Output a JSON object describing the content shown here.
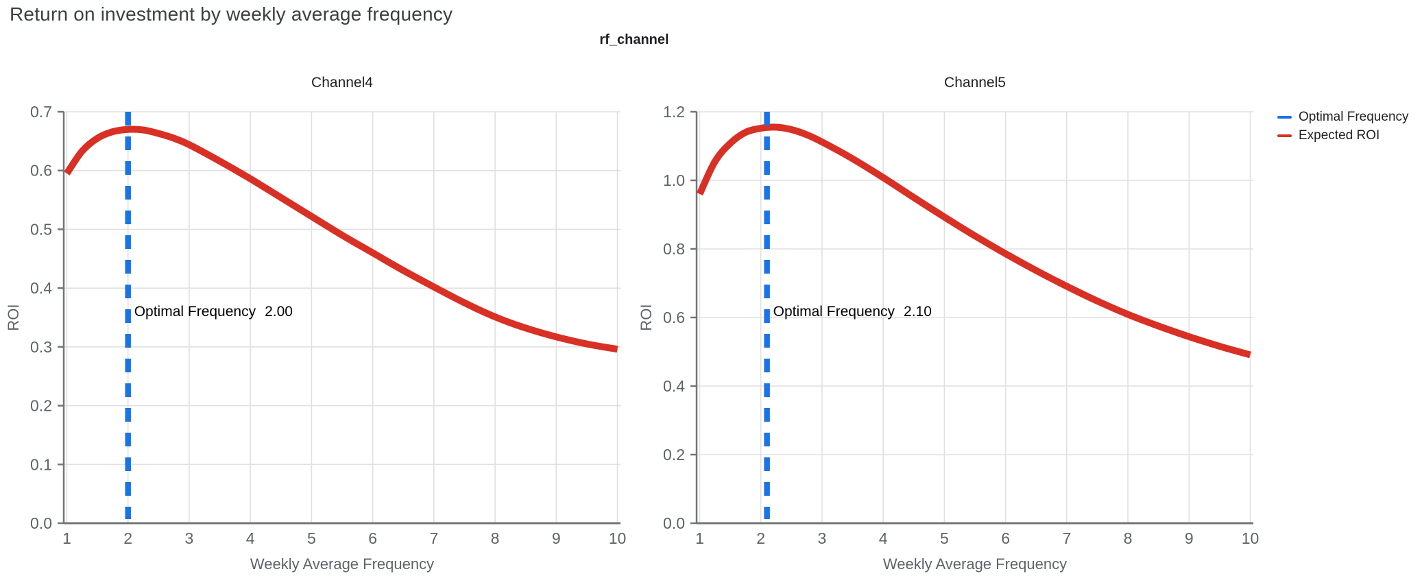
{
  "page": {
    "title": "Return on investment by weekly average frequency",
    "facet_title": "rf_channel"
  },
  "legend": {
    "items": [
      {
        "label": "Optimal Frequency",
        "color": "#1a73e8"
      },
      {
        "label": "Expected ROI",
        "color": "#d93025"
      }
    ]
  },
  "colors": {
    "optimal_frequency": "#1a73e8",
    "expected_roi": "#d93025",
    "grid": "#e0e0e0",
    "axis": "#70757a",
    "tick_label": "#5f6368",
    "title": "#3c4043",
    "annotation": "#000000"
  },
  "chart_data": [
    {
      "type": "line",
      "title": "Channel4",
      "xlabel": "Weekly Average Frequency",
      "ylabel": "ROI",
      "xlim": [
        0.95,
        10.05
      ],
      "ylim": [
        0,
        0.7
      ],
      "grid": true,
      "xticks": [
        1,
        2,
        3,
        4,
        5,
        6,
        7,
        8,
        9,
        10
      ],
      "xtick_labels": [
        "1",
        "2",
        "3",
        "4",
        "5",
        "6",
        "7",
        "8",
        "9",
        "10"
      ],
      "yticks": [
        0,
        0.1,
        0.2,
        0.3,
        0.4,
        0.5,
        0.6,
        0.7
      ],
      "ytick_labels": [
        "0.0",
        "0.1",
        "0.2",
        "0.3",
        "0.4",
        "0.5",
        "0.6",
        "0.7"
      ],
      "optimal_frequency": 2.0,
      "annotation_label": "Optimal Frequency",
      "annotation_value": "2.00",
      "series": [
        {
          "name": "Expected ROI",
          "x": [
            1,
            1.25,
            1.5,
            1.75,
            2,
            2.25,
            2.5,
            2.75,
            3,
            3.5,
            4,
            4.5,
            5,
            5.5,
            6,
            6.5,
            7,
            7.5,
            8,
            8.5,
            9,
            9.5,
            10
          ],
          "y": [
            0.595,
            0.633,
            0.655,
            0.666,
            0.67,
            0.669,
            0.663,
            0.655,
            0.644,
            0.616,
            0.586,
            0.554,
            0.522,
            0.49,
            0.46,
            0.43,
            0.402,
            0.375,
            0.351,
            0.332,
            0.317,
            0.305,
            0.296
          ]
        }
      ]
    },
    {
      "type": "line",
      "title": "Channel5",
      "xlabel": "Weekly Average Frequency",
      "ylabel": "ROI",
      "xlim": [
        0.95,
        10.05
      ],
      "ylim": [
        0,
        1.2
      ],
      "grid": true,
      "xticks": [
        1,
        2,
        3,
        4,
        5,
        6,
        7,
        8,
        9,
        10
      ],
      "xtick_labels": [
        "1",
        "2",
        "3",
        "4",
        "5",
        "6",
        "7",
        "8",
        "9",
        "10"
      ],
      "yticks": [
        0,
        0.2,
        0.4,
        0.6,
        0.8,
        1.0,
        1.2
      ],
      "ytick_labels": [
        "0.0",
        "0.2",
        "0.4",
        "0.6",
        "0.8",
        "1.0",
        "1.2"
      ],
      "optimal_frequency": 2.1,
      "annotation_label": "Optimal Frequency",
      "annotation_value": "2.10",
      "series": [
        {
          "name": "Expected ROI",
          "x": [
            1,
            1.25,
            1.5,
            1.75,
            2,
            2.25,
            2.5,
            2.75,
            3,
            3.5,
            4,
            4.5,
            5,
            5.5,
            6,
            6.5,
            7,
            7.5,
            8,
            8.5,
            9,
            9.5,
            10
          ],
          "y": [
            0.96,
            1.055,
            1.108,
            1.14,
            1.152,
            1.155,
            1.148,
            1.133,
            1.112,
            1.063,
            1.008,
            0.95,
            0.893,
            0.838,
            0.786,
            0.737,
            0.691,
            0.648,
            0.609,
            0.575,
            0.544,
            0.516,
            0.491
          ]
        }
      ]
    }
  ]
}
